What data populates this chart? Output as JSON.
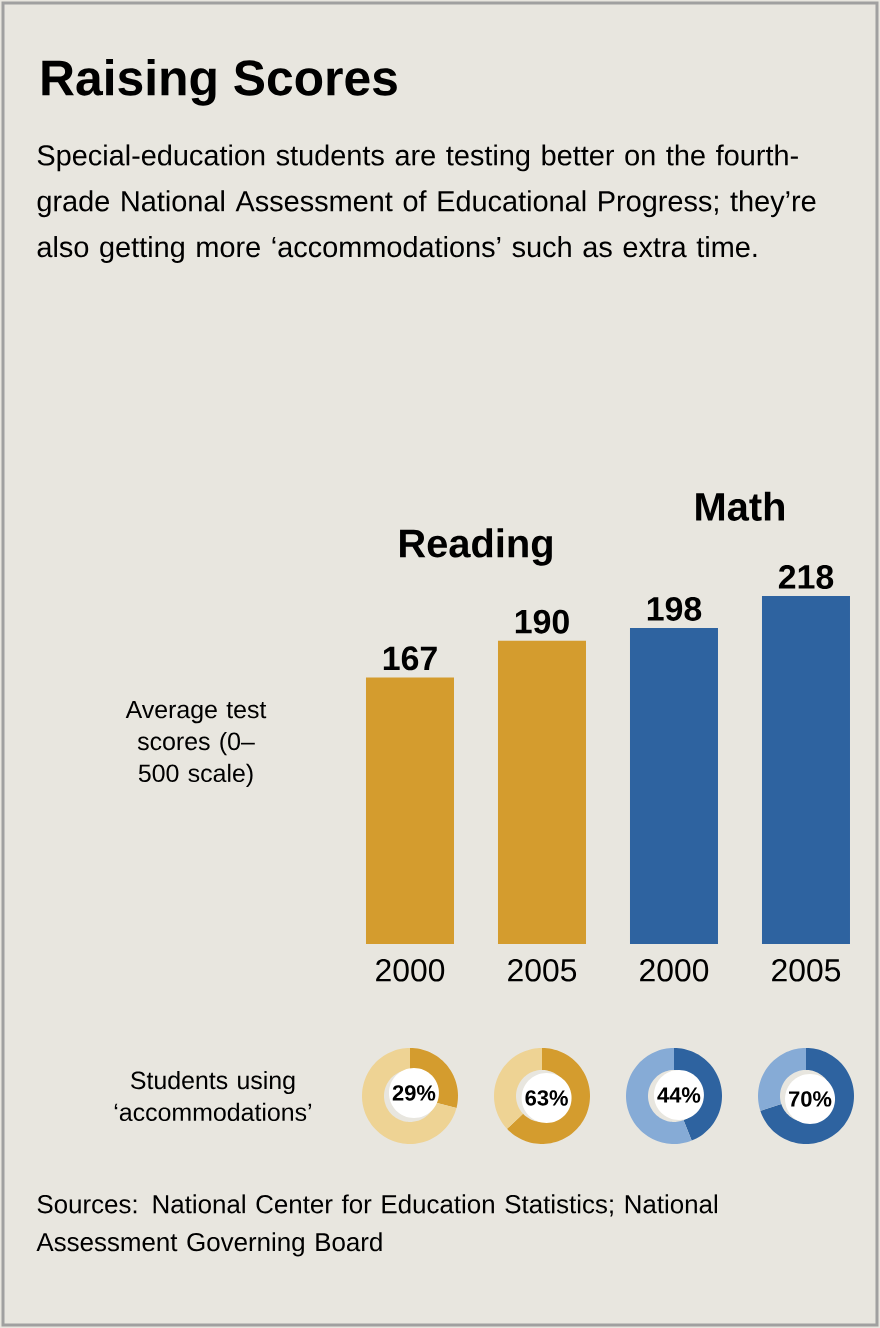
{
  "chart_data": [
    {
      "type": "bar",
      "title": "Raising Scores",
      "subtitle": "Special-education students are testing better on the fourth-grade National Assessment of Educational Progress; they’re also getting more ‘accommodations’ such as extra time.",
      "ylabel": "Average test scores (0–500 scale)",
      "categories": [
        "2000",
        "2005",
        "2000",
        "2005"
      ],
      "series": [
        {
          "name": "Reading",
          "color": "#d49c2e",
          "values": [
            167,
            190,
            null,
            null
          ]
        },
        {
          "name": "Math",
          "color": "#2e63a0",
          "values": [
            null,
            null,
            198,
            218
          ]
        }
      ],
      "data_labels": true,
      "annotations": [
        "Sources: National Center for Education Statistics; National Assessment Governing Board"
      ]
    },
    {
      "type": "donut",
      "ylabel": "Students using ‘accommodations’",
      "categories": [
        null,
        null
      ],
      "values": [
        29,
        71
      ],
      "colors": [
        "#d49c2e",
        "#eed394"
      ],
      "value_labels": [
        "29%",
        null
      ]
    },
    {
      "type": "donut",
      "categories": [
        null,
        null
      ],
      "values": [
        63,
        37
      ],
      "colors": [
        "#d49c2e",
        "#eed394"
      ],
      "value_labels": [
        "63%",
        null
      ]
    },
    {
      "type": "donut",
      "categories": [
        null,
        null
      ],
      "values": [
        44,
        56
      ],
      "colors": [
        "#2e63a0",
        "#86abd6"
      ],
      "value_labels": [
        "44%",
        null
      ]
    },
    {
      "type": "donut",
      "categories": [
        null,
        null
      ],
      "values": [
        70,
        30
      ],
      "colors": [
        "#2e63a0",
        "#86abd6"
      ],
      "value_labels": [
        "70%",
        null
      ]
    }
  ]
}
